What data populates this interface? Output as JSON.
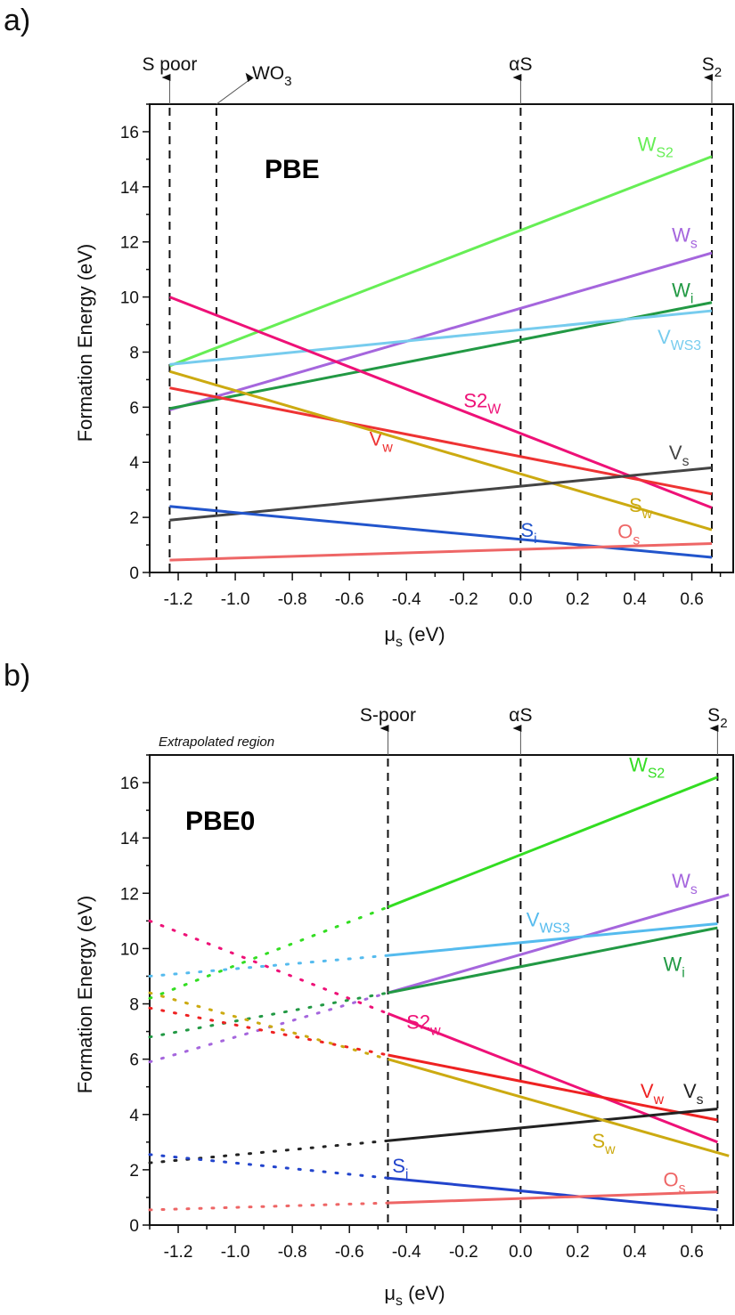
{
  "chart_data": [
    {
      "type": "line",
      "panel_label": "a)",
      "title": "PBE",
      "xlabel": "μs (eV)",
      "xlabel_main": "μ",
      "xlabel_sub": "s",
      "xlabel_unit": " (eV)",
      "ylabel": "Formation Energy (eV)",
      "xlim": [
        -1.3,
        0.745
      ],
      "ylim": [
        0,
        17
      ],
      "xticks": [
        "-1.2",
        "-1.0",
        "-0.8",
        "-0.6",
        "-0.4",
        "-0.2",
        "0.0",
        "0.2",
        "0.4",
        "0.6"
      ],
      "yticks": [
        "0",
        "2",
        "4",
        "6",
        "8",
        "10",
        "12",
        "14",
        "16"
      ],
      "grid": false,
      "legend": "inline labels",
      "markers": [
        {
          "label": "S poor",
          "sub": "",
          "x": -1.23,
          "arrow": "up"
        },
        {
          "label": "WO",
          "sub": "3",
          "x": -1.066,
          "arrow": "diagonal"
        },
        {
          "label": "αS",
          "sub": "",
          "x": 0.0,
          "arrow": "up"
        },
        {
          "label": "S",
          "sub": "2",
          "x": 0.67,
          "arrow": "up"
        }
      ],
      "series": [
        {
          "name": "W_S2",
          "main": "W",
          "sub": "S2",
          "color": "#66ee55",
          "x": [
            -1.23,
            0.67
          ],
          "y": [
            7.5,
            15.1
          ],
          "label_pos": [
            0.41,
            15.3
          ]
        },
        {
          "name": "W_s",
          "main": "W",
          "sub": "s",
          "color": "#a566dd",
          "x": [
            -1.23,
            0.67
          ],
          "y": [
            5.9,
            11.6
          ],
          "label_pos": [
            0.53,
            12.0
          ]
        },
        {
          "name": "W_i",
          "main": "W",
          "sub": "i",
          "color": "#229944",
          "x": [
            -1.23,
            0.67
          ],
          "y": [
            5.95,
            9.8
          ],
          "label_pos": [
            0.53,
            10.0
          ]
        },
        {
          "name": "V_WS3",
          "main": "V",
          "sub": "WS3",
          "color": "#77ccee",
          "x": [
            -1.23,
            0.67
          ],
          "y": [
            7.55,
            9.5
          ],
          "label_pos": [
            0.48,
            8.3
          ]
        },
        {
          "name": "S2_W",
          "main": "S2",
          "sub": "W",
          "color": "#ee1177",
          "x": [
            -1.23,
            0.67
          ],
          "y": [
            10.0,
            2.35
          ],
          "label_pos": [
            -0.2,
            6.0
          ]
        },
        {
          "name": "V_w",
          "main": "V",
          "sub": "w",
          "color": "#ee3333",
          "x": [
            -1.23,
            0.67
          ],
          "y": [
            6.7,
            2.85
          ],
          "label_pos": [
            -0.53,
            4.6
          ]
        },
        {
          "name": "S_w",
          "main": "S",
          "sub": "w",
          "color": "#ccaa11",
          "x": [
            -1.23,
            0.67
          ],
          "y": [
            7.3,
            1.55
          ],
          "label_pos": [
            0.38,
            2.2
          ]
        },
        {
          "name": "V_s",
          "main": "V",
          "sub": "s",
          "color": "#444444",
          "x": [
            -1.23,
            0.67
          ],
          "y": [
            1.9,
            3.8
          ],
          "label_pos": [
            0.52,
            4.1
          ]
        },
        {
          "name": "S_i",
          "main": "S",
          "sub": "i",
          "color": "#2255cc",
          "x": [
            -1.23,
            0.67
          ],
          "y": [
            2.4,
            0.55
          ],
          "label_pos": [
            0.0,
            1.3
          ]
        },
        {
          "name": "O_s",
          "main": "O",
          "sub": "s",
          "color": "#ee6666",
          "x": [
            -1.23,
            0.67
          ],
          "y": [
            0.45,
            1.05
          ],
          "label_pos": [
            0.34,
            1.25
          ]
        }
      ]
    },
    {
      "type": "line",
      "panel_label": "b)",
      "title": "PBE0",
      "note": "Extrapolated region",
      "xlabel": "μs (eV)",
      "xlabel_main": "μ",
      "xlabel_sub": "s",
      "xlabel_unit": " (eV)",
      "ylabel": "Formation Energy (eV)",
      "xlim": [
        -1.3,
        0.745
      ],
      "ylim": [
        0,
        17
      ],
      "xticks": [
        "-1.2",
        "-1.0",
        "-0.8",
        "-0.6",
        "-0.4",
        "-0.2",
        "0.0",
        "0.2",
        "0.4",
        "0.6"
      ],
      "yticks": [
        "0",
        "2",
        "4",
        "6",
        "8",
        "10",
        "12",
        "14",
        "16"
      ],
      "grid": false,
      "legend": "inline labels",
      "markers": [
        {
          "label": "S-poor",
          "sub": "",
          "x": -0.465,
          "arrow": "up"
        },
        {
          "label": "αS",
          "sub": "",
          "x": 0.0,
          "arrow": "up"
        },
        {
          "label": "S",
          "sub": "2",
          "x": 0.69,
          "arrow": "up"
        }
      ],
      "series": [
        {
          "name": "W_S2",
          "main": "W",
          "sub": "S2",
          "color": "#33dd22",
          "x": [
            -0.465,
            0.69
          ],
          "y": [
            11.5,
            16.2
          ],
          "extrapolated": {
            "x": [
              -1.3,
              -0.465
            ],
            "y": [
              8.2,
              11.5
            ]
          },
          "label_pos": [
            0.38,
            16.4
          ]
        },
        {
          "name": "W_s",
          "main": "W",
          "sub": "s",
          "color": "#a566dd",
          "x": [
            -0.465,
            0.73
          ],
          "y": [
            8.4,
            11.95
          ],
          "extrapolated": {
            "x": [
              -1.3,
              -0.465
            ],
            "y": [
              5.9,
              8.4
            ]
          },
          "label_pos": [
            0.53,
            12.2
          ]
        },
        {
          "name": "V_WS3",
          "main": "V",
          "sub": "WS3",
          "color": "#55bbee",
          "x": [
            -0.465,
            0.69
          ],
          "y": [
            9.75,
            10.9
          ],
          "extrapolated": {
            "x": [
              -1.3,
              -0.465
            ],
            "y": [
              9.0,
              9.75
            ]
          },
          "label_pos": [
            0.02,
            10.8
          ]
        },
        {
          "name": "W_i",
          "main": "W",
          "sub": "i",
          "color": "#229944",
          "x": [
            -0.465,
            0.69
          ],
          "y": [
            8.4,
            10.75
          ],
          "extrapolated": {
            "x": [
              -1.3,
              -0.465
            ],
            "y": [
              6.8,
              8.4
            ]
          },
          "label_pos": [
            0.5,
            9.2
          ]
        },
        {
          "name": "S2_w",
          "main": "S2",
          "sub": "w",
          "color": "#ee1177",
          "x": [
            -0.465,
            0.69
          ],
          "y": [
            7.65,
            3.0
          ],
          "extrapolated": {
            "x": [
              -1.3,
              -0.465
            ],
            "y": [
              11.0,
              7.65
            ]
          },
          "label_pos": [
            -0.4,
            7.1
          ]
        },
        {
          "name": "V_w",
          "main": "V",
          "sub": "w",
          "color": "#ee2222",
          "x": [
            -0.465,
            0.69
          ],
          "y": [
            6.15,
            3.8
          ],
          "extrapolated": {
            "x": [
              -1.3,
              -0.465
            ],
            "y": [
              7.85,
              6.15
            ]
          },
          "label_pos": [
            0.42,
            4.6
          ]
        },
        {
          "name": "V_s",
          "main": "V",
          "sub": "s",
          "color": "#222222",
          "x": [
            -0.465,
            0.69
          ],
          "y": [
            3.05,
            4.2
          ],
          "extrapolated": {
            "x": [
              -1.3,
              -0.465
            ],
            "y": [
              2.25,
              3.05
            ]
          },
          "label_pos": [
            0.57,
            4.6
          ]
        },
        {
          "name": "S_w",
          "main": "S",
          "sub": "w",
          "color": "#ccaa11",
          "x": [
            -0.465,
            0.73
          ],
          "y": [
            6.0,
            2.5
          ],
          "extrapolated": {
            "x": [
              -1.3,
              -0.465
            ],
            "y": [
              8.4,
              6.0
            ]
          },
          "label_pos": [
            0.25,
            2.8
          ]
        },
        {
          "name": "S_i",
          "main": "S",
          "sub": "i",
          "color": "#2244cc",
          "x": [
            -0.465,
            0.69
          ],
          "y": [
            1.7,
            0.55
          ],
          "extrapolated": {
            "x": [
              -1.3,
              -0.465
            ],
            "y": [
              2.55,
              1.7
            ]
          },
          "label_pos": [
            -0.45,
            1.9
          ]
        },
        {
          "name": "O_s",
          "main": "O",
          "sub": "s",
          "color": "#ee6666",
          "x": [
            -0.465,
            0.69
          ],
          "y": [
            0.8,
            1.2
          ],
          "extrapolated": {
            "x": [
              -1.3,
              -0.465
            ],
            "y": [
              0.55,
              0.8
            ]
          },
          "label_pos": [
            0.5,
            1.4
          ]
        }
      ]
    }
  ]
}
